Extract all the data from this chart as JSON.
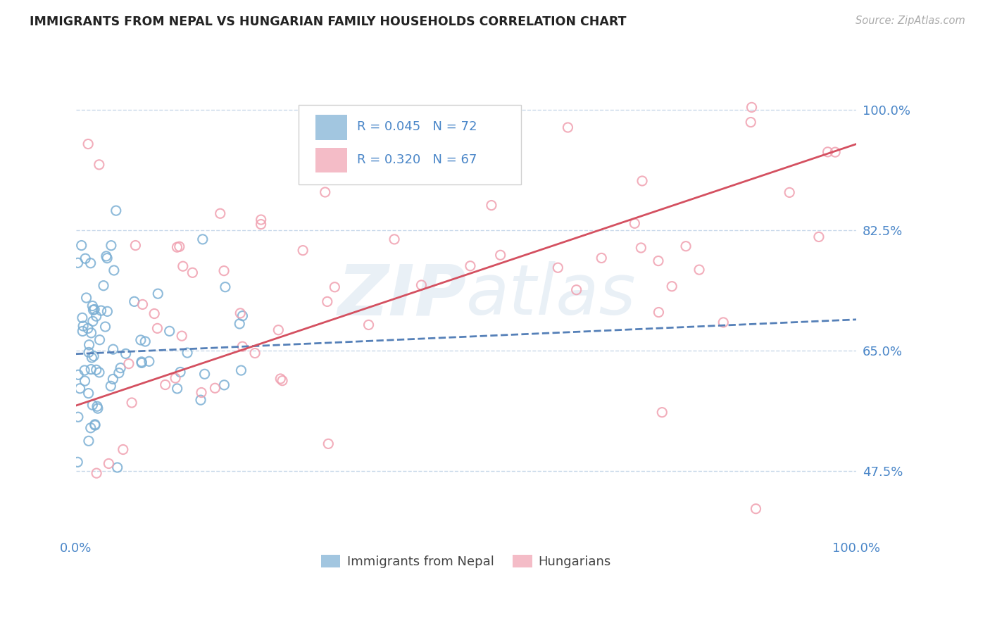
{
  "title": "IMMIGRANTS FROM NEPAL VS HUNGARIAN FAMILY HOUSEHOLDS CORRELATION CHART",
  "source": "Source: ZipAtlas.com",
  "legend_label_blue": "Immigrants from Nepal",
  "legend_label_pink": "Hungarians",
  "watermark": "ZIPatlas",
  "blue_color": "#7bafd4",
  "pink_color": "#f0a0b0",
  "trend_blue_color": "#5580b8",
  "trend_pink_color": "#d45060",
  "axis_label_color": "#4a86c8",
  "title_color": "#222222",
  "grid_color": "#c8d8ea",
  "xmin": 0,
  "xmax": 100,
  "ymin": 38,
  "ymax": 108,
  "yticks": [
    47.5,
    65.0,
    82.5,
    100.0
  ],
  "ytick_labels": [
    "47.5%",
    "65.0%",
    "82.5%",
    "100.0%"
  ],
  "xtick_labels": [
    "0.0%",
    "100.0%"
  ],
  "blue_trend_x0": 0,
  "blue_trend_x1": 100,
  "blue_trend_y0": 64.5,
  "blue_trend_y1": 69.5,
  "pink_trend_x0": 0,
  "pink_trend_x1": 100,
  "pink_trend_y0": 57.0,
  "pink_trend_y1": 95.0
}
